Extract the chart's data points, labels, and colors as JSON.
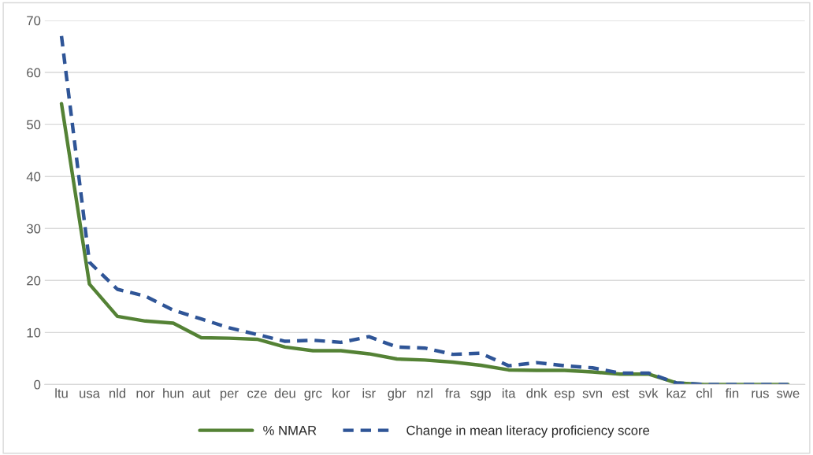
{
  "chart_data": {
    "type": "line",
    "categories": [
      "ltu",
      "usa",
      "nld",
      "nor",
      "hun",
      "aut",
      "per",
      "cze",
      "deu",
      "grc",
      "kor",
      "isr",
      "gbr",
      "nzl",
      "fra",
      "sgp",
      "ita",
      "dnk",
      "esp",
      "svn",
      "est",
      "svk",
      "kaz",
      "chl",
      "fin",
      "rus",
      "swe"
    ],
    "series": [
      {
        "name": "% NMAR",
        "color": "#548235",
        "line_style": "solid",
        "values": [
          54,
          19.3,
          13.1,
          12.2,
          11.8,
          9,
          8.9,
          8.7,
          7.2,
          6.5,
          6.5,
          5.9,
          4.9,
          4.7,
          4.3,
          3.7,
          2.8,
          2.7,
          2.7,
          2.4,
          2,
          2,
          0.3,
          0,
          0,
          0,
          0
        ]
      },
      {
        "name": "Change in mean literacy proficiency score",
        "color": "#2f5597",
        "line_style": "dashed",
        "values": [
          67,
          23.5,
          18.3,
          17,
          14.3,
          12.6,
          10.9,
          9.6,
          8.3,
          8.5,
          8.1,
          9.2,
          7.2,
          7,
          5.8,
          6,
          3.6,
          4.2,
          3.6,
          3.2,
          2.2,
          2.2,
          0.3,
          0,
          0,
          0,
          0
        ]
      }
    ],
    "ylim": [
      0,
      70
    ],
    "yticks": [
      0,
      10,
      20,
      30,
      40,
      50,
      60,
      70
    ],
    "grid": "y",
    "legend": "bottom",
    "marker": "none"
  }
}
